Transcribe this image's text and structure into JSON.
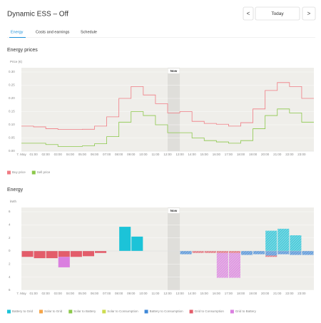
{
  "header": {
    "title": "Dynamic ESS – Off",
    "prev": "<",
    "date": "Today",
    "next": ">"
  },
  "tabs": [
    "Energy",
    "Costs and earnings",
    "Schedule"
  ],
  "chart_data": [
    {
      "type": "line",
      "step": true,
      "title": "Energy prices",
      "y_label": "Price (€)",
      "categories": [
        "7. May",
        "01:00",
        "02:00",
        "03:00",
        "04:00",
        "05:00",
        "06:00",
        "07:00",
        "08:00",
        "09:00",
        "10:00",
        "11:00",
        "12:00",
        "13:00",
        "14:00",
        "15:00",
        "16:00",
        "17:00",
        "18:00",
        "19:00",
        "20:00",
        "21:00",
        "22:00",
        "23:00"
      ],
      "now": "12:00",
      "now_label": "Now",
      "series": [
        {
          "name": "Buy price",
          "color": "#f07c84",
          "values": [
            0.095,
            0.092,
            0.085,
            0.082,
            0.082,
            0.083,
            0.095,
            0.13,
            0.2,
            0.245,
            0.213,
            0.18,
            0.145,
            0.15,
            0.113,
            0.105,
            0.102,
            0.095,
            0.108,
            0.16,
            0.23,
            0.26,
            0.245,
            0.2
          ]
        },
        {
          "name": "Sell price",
          "color": "#8cc84b",
          "values": [
            0.03,
            0.03,
            0.025,
            0.018,
            0.018,
            0.02,
            0.028,
            0.055,
            0.11,
            0.15,
            0.135,
            0.1,
            0.07,
            0.07,
            0.05,
            0.04,
            0.035,
            0.03,
            0.04,
            0.085,
            0.135,
            0.16,
            0.145,
            0.11
          ]
        }
      ],
      "ylim": [
        0,
        0.3
      ],
      "yticks": [
        {
          "value": 0,
          "label": "0.00"
        },
        0.05,
        {
          "value": 0.1,
          "label": "0.10"
        },
        0.15,
        {
          "value": 0.2,
          "label": "0.20"
        },
        0.25,
        {
          "value": 0.3,
          "label": "0.30"
        }
      ],
      "grid": true,
      "legend": "bottom-left"
    },
    {
      "type": "bar",
      "stacked": true,
      "title": "Energy",
      "y_label": "kWh",
      "categories": [
        "7. May",
        "01:00",
        "02:00",
        "03:00",
        "04:00",
        "05:00",
        "06:00",
        "07:00",
        "08:00",
        "09:00",
        "10:00",
        "11:00",
        "12:00",
        "13:00",
        "14:00",
        "15:00",
        "16:00",
        "17:00",
        "18:00",
        "19:00",
        "20:00",
        "21:00",
        "22:00",
        "23:00"
      ],
      "now": "12:00",
      "now_label": "Now",
      "series": [
        {
          "name": "Battery to Grid",
          "color": "#1cc3d8",
          "values": [
            null,
            null,
            null,
            null,
            null,
            null,
            null,
            null,
            3.7,
            2.2,
            null,
            null,
            null,
            null,
            null,
            null,
            null,
            null,
            null,
            null,
            3.1,
            3.4,
            2.4,
            null
          ]
        },
        {
          "name": "Solar to Grid",
          "color": "#f5a54a",
          "values": [
            null,
            null,
            null,
            null,
            null,
            null,
            null,
            null,
            null,
            null,
            null,
            null,
            null,
            null,
            null,
            null,
            null,
            null,
            null,
            null,
            null,
            null,
            null,
            null
          ]
        },
        {
          "name": "Solar to Battery",
          "color": "#8cc84b",
          "values": [
            null,
            null,
            null,
            null,
            null,
            null,
            null,
            null,
            null,
            null,
            null,
            null,
            null,
            null,
            null,
            null,
            null,
            null,
            null,
            null,
            null,
            null,
            null,
            null
          ]
        },
        {
          "name": "Solar to Consumption",
          "color": "#cddc50",
          "values": [
            null,
            null,
            null,
            null,
            null,
            null,
            null,
            null,
            null,
            null,
            null,
            null,
            null,
            null,
            null,
            null,
            null,
            null,
            null,
            null,
            null,
            null,
            null,
            null
          ]
        },
        {
          "name": "Battery to Consumption",
          "color": "#3f88d8",
          "values": [
            null,
            null,
            null,
            null,
            null,
            null,
            null,
            null,
            null,
            null,
            null,
            null,
            null,
            -0.5,
            null,
            null,
            null,
            null,
            -0.6,
            -0.5,
            -0.7,
            -0.5,
            -0.6,
            -0.6
          ]
        },
        {
          "name": "Grid to Consumption",
          "color": "#e35d6a",
          "values": [
            -0.9,
            -1.1,
            -1.1,
            -0.9,
            -0.9,
            -0.8,
            -0.3,
            null,
            null,
            null,
            null,
            null,
            null,
            null,
            -0.3,
            -0.3,
            -0.3,
            -0.3,
            null,
            null,
            -0.2,
            null,
            null,
            null
          ]
        },
        {
          "name": "Grid to Battery",
          "color": "#da7fdf",
          "values": [
            null,
            null,
            null,
            -1.6,
            null,
            null,
            null,
            null,
            null,
            null,
            null,
            null,
            null,
            null,
            null,
            null,
            -3.8,
            -3.8,
            null,
            null,
            null,
            null,
            null,
            null
          ]
        }
      ],
      "ylim": [
        -6,
        6
      ],
      "yticks": [
        {
          "value": -6,
          "label": "6"
        },
        {
          "value": -4,
          "label": "4"
        },
        {
          "value": -2,
          "label": "2"
        },
        0,
        2,
        4,
        6
      ],
      "grid": true,
      "legend": "bottom-left"
    }
  ]
}
